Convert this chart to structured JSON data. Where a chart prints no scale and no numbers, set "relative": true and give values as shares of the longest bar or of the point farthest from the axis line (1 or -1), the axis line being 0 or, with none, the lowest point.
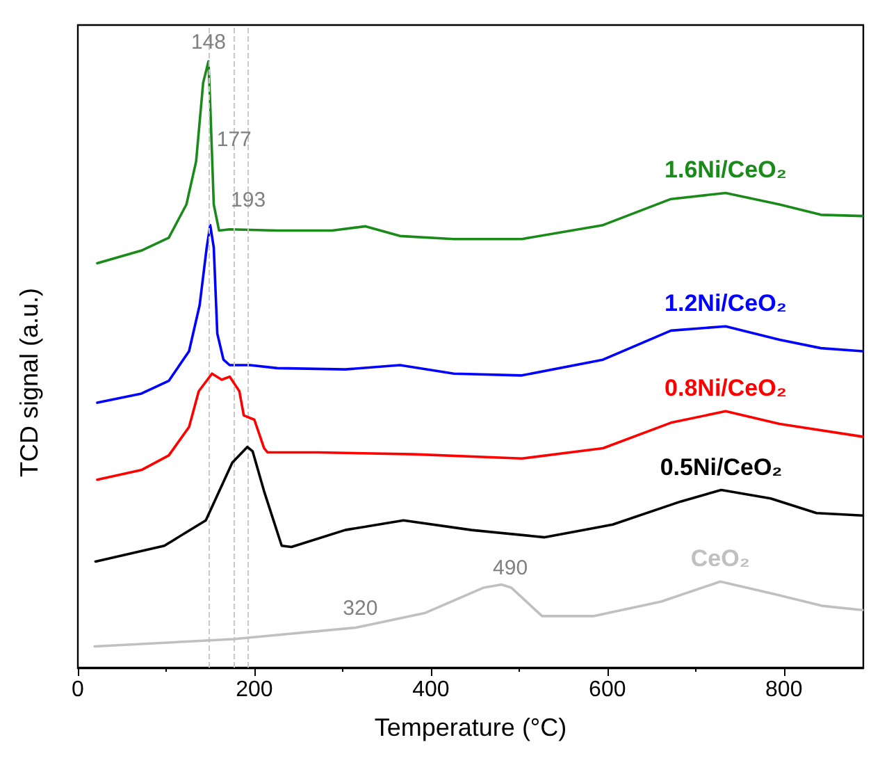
{
  "chart_data": {
    "type": "line",
    "relative": true,
    "xlabel": "Temperature (°C)",
    "ylabel": "TCD signal (a.u.)",
    "xlim": [
      0,
      890
    ],
    "xticks": [
      0,
      200,
      400,
      600,
      800
    ],
    "tick_labels": "x",
    "grid": false,
    "marker": "none",
    "series": [
      {
        "name": "1.6Ni/CeO₂",
        "color": "#1a8a1a",
        "x": [
          22,
          72,
          103,
          123,
          134,
          142,
          148,
          150,
          154,
          160,
          172,
          226,
          288,
          326,
          365,
          426,
          503,
          595,
          672,
          734,
          795,
          842,
          889
        ],
        "values": [
          0.667,
          0.688,
          0.709,
          0.764,
          0.835,
          0.965,
          1.0,
          0.929,
          0.764,
          0.721,
          0.723,
          0.721,
          0.721,
          0.728,
          0.712,
          0.707,
          0.707,
          0.73,
          0.773,
          0.783,
          0.764,
          0.747,
          0.745
        ]
      },
      {
        "name": "1.2Ni/CeO₂",
        "color": "#0000ff",
        "x": [
          22,
          72,
          103,
          126,
          138,
          146,
          150,
          154,
          158,
          165,
          172,
          195,
          226,
          303,
          365,
          426,
          503,
          595,
          672,
          734,
          795,
          842,
          889
        ],
        "values": [
          0.437,
          0.452,
          0.473,
          0.522,
          0.598,
          0.693,
          0.73,
          0.693,
          0.551,
          0.508,
          0.499,
          0.499,
          0.494,
          0.492,
          0.499,
          0.485,
          0.482,
          0.508,
          0.556,
          0.563,
          0.541,
          0.527,
          0.522
        ]
      },
      {
        "name": "0.8Ni/CeO₂",
        "color": "#ff0000",
        "x": [
          22,
          72,
          103,
          126,
          137,
          152,
          163,
          172,
          183,
          188,
          200,
          211,
          215,
          272,
          380,
          503,
          595,
          672,
          734,
          795,
          889
        ],
        "values": [
          0.31,
          0.326,
          0.35,
          0.397,
          0.456,
          0.485,
          0.475,
          0.48,
          0.456,
          0.416,
          0.409,
          0.362,
          0.355,
          0.355,
          0.352,
          0.345,
          0.362,
          0.404,
          0.423,
          0.402,
          0.381
        ]
      },
      {
        "name": "0.5Ni/CeO₂",
        "color": "#000000",
        "x": [
          20,
          98,
          145,
          175,
          192,
          198,
          211,
          231,
          242,
          303,
          369,
          446,
          529,
          606,
          683,
          729,
          785,
          837,
          889
        ],
        "values": [
          0.175,
          0.201,
          0.243,
          0.338,
          0.364,
          0.357,
          0.291,
          0.201,
          0.199,
          0.227,
          0.243,
          0.227,
          0.215,
          0.236,
          0.274,
          0.293,
          0.279,
          0.255,
          0.251
        ]
      },
      {
        "name": "CeO₂",
        "color": "#c0c0c0",
        "x": [
          19,
          176,
          315,
          393,
          460,
          480,
          491,
          526,
          584,
          661,
          728,
          790,
          843,
          889
        ],
        "values": [
          0.035,
          0.047,
          0.066,
          0.09,
          0.132,
          0.137,
          0.132,
          0.085,
          0.085,
          0.109,
          0.142,
          0.121,
          0.102,
          0.095
        ]
      }
    ],
    "ref_lines": [
      {
        "axis": "x",
        "value": 148,
        "color": "#c8c8c8",
        "line_style": "dashed"
      },
      {
        "axis": "x",
        "value": 177,
        "color": "#c8c8c8",
        "line_style": "dashed"
      },
      {
        "axis": "x",
        "value": 193,
        "color": "#c8c8c8",
        "line_style": "dashed"
      }
    ],
    "annotations": [
      {
        "text": "148",
        "x": 148,
        "y": 1.0
      },
      {
        "text": "177",
        "x": 177,
        "y": 0.84
      },
      {
        "text": "193",
        "x": 193,
        "y": 0.74
      },
      {
        "text": "320",
        "x": 320,
        "y": 0.067
      },
      {
        "text": "490",
        "x": 490,
        "y": 0.133
      }
    ]
  }
}
